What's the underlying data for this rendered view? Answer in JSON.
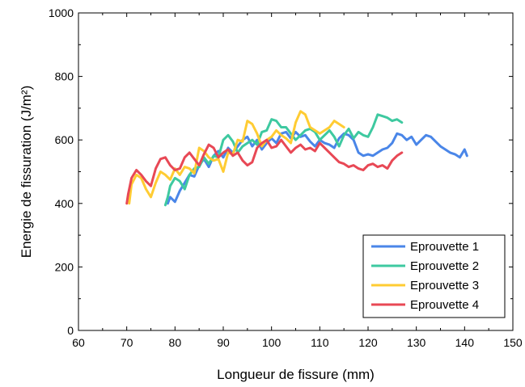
{
  "chart_data": {
    "type": "line",
    "title": "",
    "xlabel": "Longueur de fissure (mm)",
    "ylabel": "Energie de fissuration (J/m²)",
    "xlim": [
      60,
      150
    ],
    "ylim": [
      0,
      1000
    ],
    "xticks": [
      60,
      70,
      80,
      90,
      100,
      110,
      120,
      130,
      140,
      150
    ],
    "yticks": [
      0,
      200,
      400,
      600,
      800,
      1000
    ],
    "grid": false,
    "legend_position": "bottom-right",
    "series": [
      {
        "name": "Eprouvette 1",
        "color": "#4a86e8",
        "points": [
          [
            78.5,
            400
          ],
          [
            79,
            420
          ],
          [
            80,
            405
          ],
          [
            81,
            440
          ],
          [
            82,
            465
          ],
          [
            83,
            490
          ],
          [
            84,
            485
          ],
          [
            85,
            520
          ],
          [
            86,
            540
          ],
          [
            87,
            515
          ],
          [
            88,
            550
          ],
          [
            89,
            565
          ],
          [
            90,
            545
          ],
          [
            91,
            575
          ],
          [
            92,
            560
          ],
          [
            93,
            580
          ],
          [
            94,
            600
          ],
          [
            95,
            610
          ],
          [
            96,
            580
          ],
          [
            97,
            600
          ],
          [
            98,
            570
          ],
          [
            99,
            590
          ],
          [
            100,
            605
          ],
          [
            101,
            590
          ],
          [
            102,
            620
          ],
          [
            103,
            625
          ],
          [
            104,
            605
          ],
          [
            105,
            625
          ],
          [
            106,
            610
          ],
          [
            107,
            615
          ],
          [
            108,
            595
          ],
          [
            109,
            580
          ],
          [
            110,
            600
          ],
          [
            111,
            590
          ],
          [
            112,
            585
          ],
          [
            113,
            575
          ],
          [
            114,
            605
          ],
          [
            115,
            620
          ],
          [
            116,
            615
          ],
          [
            117,
            600
          ],
          [
            118,
            560
          ],
          [
            119,
            550
          ],
          [
            120,
            555
          ],
          [
            121,
            550
          ],
          [
            122,
            560
          ],
          [
            123,
            570
          ],
          [
            124,
            575
          ],
          [
            125,
            590
          ],
          [
            126,
            620
          ],
          [
            127,
            615
          ],
          [
            128,
            600
          ],
          [
            129,
            610
          ],
          [
            130,
            585
          ],
          [
            131,
            600
          ],
          [
            132,
            615
          ],
          [
            133,
            610
          ],
          [
            134,
            595
          ],
          [
            135,
            580
          ],
          [
            136,
            570
          ],
          [
            137,
            560
          ],
          [
            138,
            555
          ],
          [
            139,
            545
          ],
          [
            140,
            570
          ],
          [
            140.5,
            550
          ]
        ]
      },
      {
        "name": "Eprouvette 2",
        "color": "#3ec9a0",
        "points": [
          [
            78,
            395
          ],
          [
            78.5,
            420
          ],
          [
            79,
            455
          ],
          [
            80,
            480
          ],
          [
            81,
            470
          ],
          [
            82,
            445
          ],
          [
            83,
            490
          ],
          [
            84,
            510
          ],
          [
            85,
            515
          ],
          [
            86,
            545
          ],
          [
            87,
            525
          ],
          [
            88,
            550
          ],
          [
            89,
            545
          ],
          [
            90,
            600
          ],
          [
            91,
            615
          ],
          [
            92,
            595
          ],
          [
            93,
            560
          ],
          [
            94,
            580
          ],
          [
            95,
            590
          ],
          [
            96,
            600
          ],
          [
            97,
            585
          ],
          [
            98,
            625
          ],
          [
            99,
            630
          ],
          [
            100,
            665
          ],
          [
            101,
            660
          ],
          [
            102,
            640
          ],
          [
            103,
            640
          ],
          [
            104,
            620
          ],
          [
            105,
            600
          ],
          [
            106,
            615
          ],
          [
            107,
            630
          ],
          [
            108,
            635
          ],
          [
            109,
            625
          ],
          [
            110,
            600
          ],
          [
            111,
            615
          ],
          [
            112,
            630
          ],
          [
            113,
            610
          ],
          [
            114,
            580
          ],
          [
            115,
            615
          ],
          [
            116,
            635
          ],
          [
            117,
            605
          ],
          [
            118,
            625
          ],
          [
            119,
            615
          ],
          [
            120,
            610
          ],
          [
            121,
            640
          ],
          [
            122,
            680
          ],
          [
            123,
            675
          ],
          [
            124,
            670
          ],
          [
            125,
            660
          ],
          [
            126,
            665
          ],
          [
            127,
            655
          ]
        ]
      },
      {
        "name": "Eprouvette 3",
        "color": "#ffcc33",
        "points": [
          [
            70.5,
            400
          ],
          [
            71,
            460
          ],
          [
            72,
            490
          ],
          [
            73,
            480
          ],
          [
            74,
            445
          ],
          [
            75,
            420
          ],
          [
            76,
            465
          ],
          [
            77,
            500
          ],
          [
            78,
            490
          ],
          [
            79,
            475
          ],
          [
            80,
            510
          ],
          [
            81,
            490
          ],
          [
            82,
            515
          ],
          [
            83,
            510
          ],
          [
            84,
            495
          ],
          [
            85,
            575
          ],
          [
            86,
            565
          ],
          [
            87,
            545
          ],
          [
            88,
            535
          ],
          [
            89,
            540
          ],
          [
            90,
            500
          ],
          [
            91,
            560
          ],
          [
            92,
            555
          ],
          [
            93,
            600
          ],
          [
            94,
            595
          ],
          [
            95,
            660
          ],
          [
            96,
            650
          ],
          [
            97,
            620
          ],
          [
            98,
            580
          ],
          [
            99,
            600
          ],
          [
            100,
            610
          ],
          [
            101,
            630
          ],
          [
            102,
            615
          ],
          [
            103,
            605
          ],
          [
            104,
            590
          ],
          [
            105,
            655
          ],
          [
            106,
            690
          ],
          [
            107,
            680
          ],
          [
            108,
            640
          ],
          [
            109,
            630
          ],
          [
            110,
            620
          ],
          [
            111,
            630
          ],
          [
            112,
            640
          ],
          [
            113,
            660
          ],
          [
            114,
            650
          ],
          [
            115,
            640
          ]
        ]
      },
      {
        "name": "Eprouvette 4",
        "color": "#e84855",
        "points": [
          [
            70,
            400
          ],
          [
            70.3,
            430
          ],
          [
            71,
            480
          ],
          [
            72,
            505
          ],
          [
            73,
            490
          ],
          [
            74,
            470
          ],
          [
            75,
            455
          ],
          [
            76,
            510
          ],
          [
            77,
            540
          ],
          [
            78,
            545
          ],
          [
            79,
            520
          ],
          [
            80,
            505
          ],
          [
            81,
            510
          ],
          [
            82,
            545
          ],
          [
            83,
            560
          ],
          [
            84,
            540
          ],
          [
            85,
            520
          ],
          [
            86,
            555
          ],
          [
            87,
            585
          ],
          [
            88,
            575
          ],
          [
            89,
            545
          ],
          [
            90,
            560
          ],
          [
            91,
            570
          ],
          [
            92,
            550
          ],
          [
            93,
            560
          ],
          [
            94,
            535
          ],
          [
            95,
            520
          ],
          [
            96,
            530
          ],
          [
            97,
            575
          ],
          [
            98,
            590
          ],
          [
            99,
            600
          ],
          [
            100,
            575
          ],
          [
            101,
            580
          ],
          [
            102,
            600
          ],
          [
            103,
            580
          ],
          [
            104,
            560
          ],
          [
            105,
            575
          ],
          [
            106,
            585
          ],
          [
            107,
            570
          ],
          [
            108,
            575
          ],
          [
            109,
            565
          ],
          [
            110,
            590
          ],
          [
            111,
            575
          ],
          [
            112,
            560
          ],
          [
            113,
            545
          ],
          [
            114,
            530
          ],
          [
            115,
            525
          ],
          [
            116,
            515
          ],
          [
            117,
            520
          ],
          [
            118,
            510
          ],
          [
            119,
            505
          ],
          [
            120,
            520
          ],
          [
            121,
            525
          ],
          [
            122,
            515
          ],
          [
            123,
            520
          ],
          [
            124,
            510
          ],
          [
            125,
            535
          ],
          [
            126,
            550
          ],
          [
            127,
            560
          ]
        ]
      }
    ]
  }
}
